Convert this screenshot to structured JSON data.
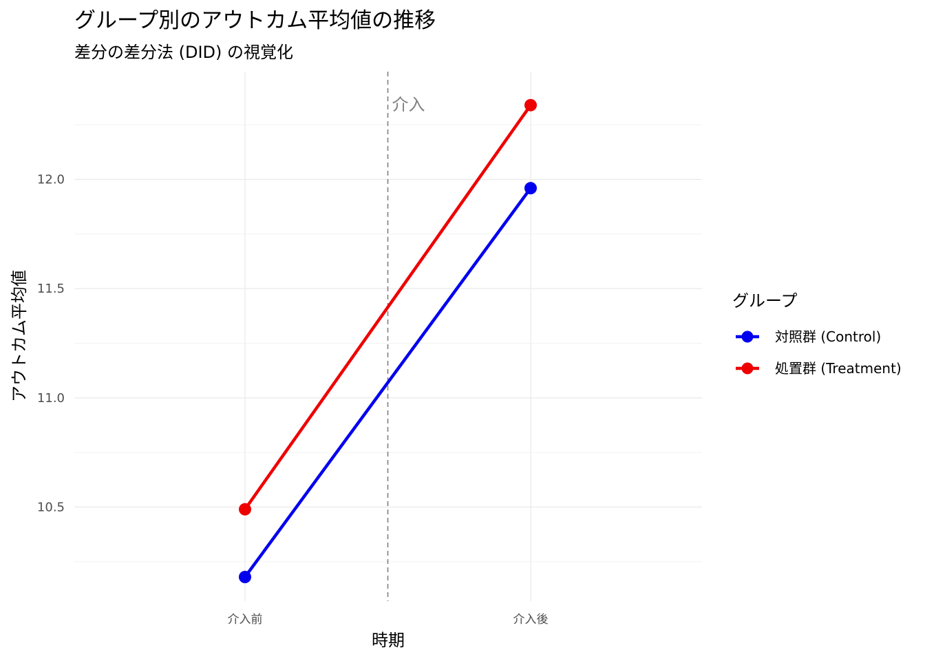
{
  "chart_data": {
    "type": "line",
    "title": "グループ別のアウトカム平均値の推移",
    "subtitle": "差分の差分法 (DID) の視覚化",
    "xlabel": "時期",
    "ylabel": "アウトカム平均値",
    "categories": [
      "介入前",
      "介入後"
    ],
    "ylim": [
      10.18,
      12.38
    ],
    "y_ticks": [
      10.5,
      11.0,
      11.5,
      12.0
    ],
    "y_tick_labels": [
      "10.5",
      "11.0",
      "11.5",
      "12.0"
    ],
    "grid": true,
    "series": [
      {
        "name": "対照群 (Control)",
        "color": "#0000ee",
        "values": [
          10.18,
          11.96
        ]
      },
      {
        "name": "処置群 (Treatment)",
        "color": "#ee0000",
        "values": [
          10.49,
          12.34
        ]
      }
    ],
    "annotation": {
      "text": "介入",
      "position_between": [
        "介入前",
        "介入後"
      ],
      "style": "dashed-vline",
      "color": "#808080"
    },
    "legend": {
      "title": "グループ",
      "placement": "right"
    }
  }
}
